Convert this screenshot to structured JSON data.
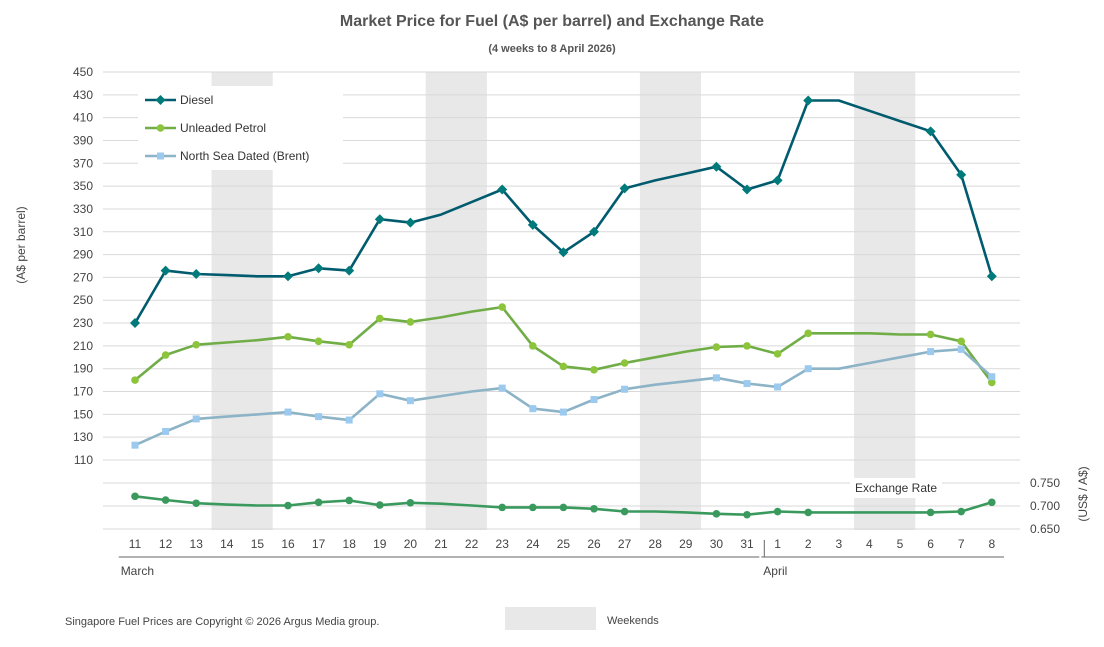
{
  "chart_data": {
    "type": "line",
    "title": "Market Price for Fuel (A$ per barrel) and Exchange Rate",
    "subtitle": "(4 weeks to 8 April 2026)",
    "ylabel": "(A$ per barrel)",
    "ylabel_right": "(US$ / A$)",
    "ylim": [
      110,
      450
    ],
    "yticks": [
      450,
      430,
      410,
      390,
      370,
      350,
      330,
      310,
      290,
      270,
      250,
      230,
      210,
      190,
      170,
      150,
      130,
      110
    ],
    "ylim_right": [
      0.65,
      0.75
    ],
    "yticks_right": [
      "0.750",
      "0.700",
      "0.650"
    ],
    "categories": [
      "11",
      "12",
      "13",
      "14",
      "15",
      "16",
      "17",
      "18",
      "19",
      "20",
      "21",
      "22",
      "23",
      "24",
      "25",
      "26",
      "27",
      "28",
      "29",
      "30",
      "31",
      "1",
      "2",
      "3",
      "4",
      "5",
      "6",
      "7",
      "8"
    ],
    "months": [
      {
        "label": "March",
        "start_index": 0,
        "end_index": 20
      },
      {
        "label": "April",
        "start_index": 21,
        "end_index": 28
      }
    ],
    "weekends": [
      [
        3,
        4
      ],
      [
        10,
        11
      ],
      [
        17,
        18
      ],
      [
        24,
        25
      ]
    ],
    "series": [
      {
        "name": "Diesel",
        "color": "#005b6e",
        "marker_color": "#007a7a",
        "marker": "diamond",
        "values": [
          230,
          276,
          273,
          null,
          null,
          271,
          278,
          276,
          321,
          318,
          null,
          null,
          347,
          316,
          292,
          310,
          348,
          null,
          null,
          367,
          347,
          355,
          425,
          null,
          null,
          null,
          398,
          360,
          271
        ],
        "line_values": [
          230,
          276,
          273,
          272,
          271,
          271,
          278,
          276,
          321,
          318,
          325,
          336,
          347,
          316,
          292,
          310,
          348,
          355,
          361,
          367,
          347,
          355,
          425,
          425,
          416,
          407,
          398,
          360,
          271
        ]
      },
      {
        "name": "Unleaded Petrol",
        "color": "#70ad47",
        "marker_color": "#8cc43c",
        "marker": "circle",
        "values": [
          180,
          202,
          211,
          null,
          null,
          218,
          214,
          211,
          234,
          231,
          null,
          null,
          244,
          210,
          192,
          189,
          195,
          null,
          null,
          209,
          210,
          203,
          221,
          null,
          null,
          null,
          220,
          214,
          178
        ],
        "line_values": [
          180,
          202,
          211,
          213,
          215,
          218,
          214,
          211,
          234,
          231,
          235,
          240,
          244,
          210,
          192,
          189,
          195,
          200,
          205,
          209,
          210,
          203,
          221,
          221,
          221,
          220,
          220,
          214,
          178
        ]
      },
      {
        "name": "North Sea Dated (Brent)",
        "color": "#8db3c7",
        "marker_color": "#9ccaee",
        "marker": "square",
        "values": [
          123,
          135,
          146,
          null,
          null,
          152,
          148,
          145,
          168,
          162,
          null,
          null,
          173,
          155,
          152,
          163,
          172,
          null,
          null,
          182,
          177,
          174,
          190,
          null,
          null,
          null,
          205,
          207,
          183
        ],
        "line_values": [
          123,
          135,
          146,
          148,
          150,
          152,
          148,
          145,
          168,
          162,
          166,
          170,
          173,
          155,
          152,
          163,
          172,
          176,
          179,
          182,
          177,
          174,
          190,
          190,
          195,
          200,
          205,
          207,
          183
        ]
      },
      {
        "name": "Exchange Rate",
        "color": "#3a9a5e",
        "marker_color": "#3a9a5e",
        "marker": "circle",
        "axis": "right",
        "values": [
          0.721,
          0.713,
          0.706,
          null,
          null,
          0.701,
          0.708,
          0.712,
          0.702,
          0.707,
          null,
          null,
          0.697,
          0.697,
          0.697,
          0.694,
          0.688,
          null,
          null,
          0.683,
          0.681,
          0.688,
          0.686,
          null,
          null,
          null,
          0.686,
          0.688,
          0.708
        ],
        "line_values": [
          0.721,
          0.713,
          0.706,
          0.703,
          0.701,
          0.701,
          0.708,
          0.712,
          0.702,
          0.707,
          0.705,
          0.701,
          0.697,
          0.697,
          0.697,
          0.694,
          0.688,
          0.688,
          0.686,
          0.683,
          0.681,
          0.688,
          0.686,
          0.686,
          0.686,
          0.686,
          0.686,
          0.688,
          0.708
        ]
      }
    ],
    "legend": [
      {
        "name": "Diesel"
      },
      {
        "name": "Unleaded Petrol"
      },
      {
        "name": "North Sea Dated (Brent)"
      }
    ],
    "exchange_label": "Exchange Rate",
    "footer_copyright": "Singapore Fuel Prices are Copyright © 2026 Argus Media group.",
    "footer_weekends": "Weekends",
    "weekend_color": "#e8e8e8",
    "grid_color": "#d9d9d9"
  }
}
